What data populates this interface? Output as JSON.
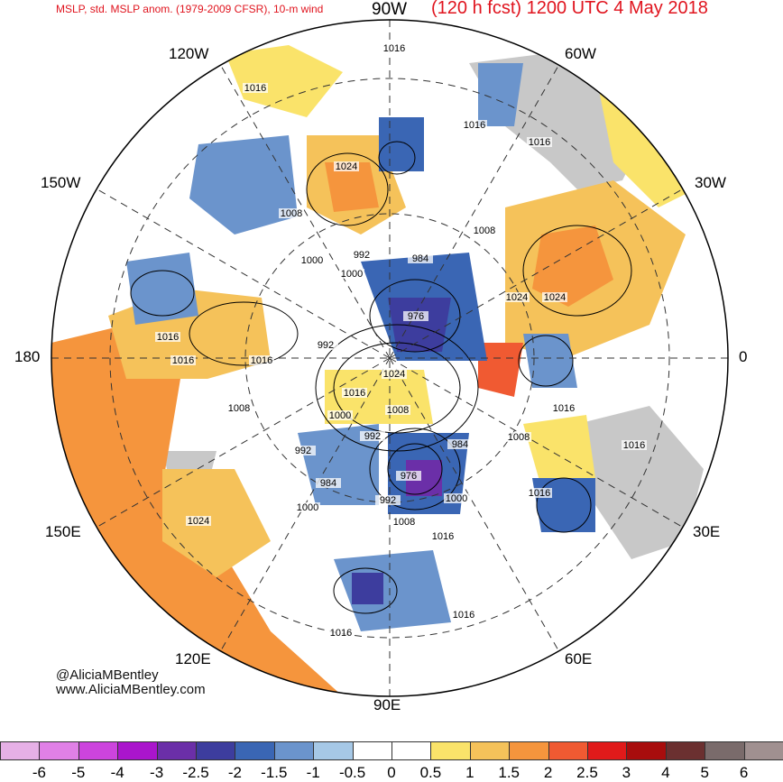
{
  "header": {
    "left_title": "MSLP, std. MSLP anom. (1979-2009 CFSR), 10-m wind",
    "right_title": "(120 h fcst) 1200 UTC 4 May 2018"
  },
  "longitude_labels": {
    "top": "90W",
    "top_left": "120W",
    "top_right": "60W",
    "left_upper": "150W",
    "right_upper": "30W",
    "left": "180",
    "right": "0",
    "left_lower": "150E",
    "right_lower": "30E",
    "bottom_left": "120E",
    "bottom_right": "60E",
    "bottom": "90E"
  },
  "isobar_labels": [
    "1016",
    "1016",
    "1016",
    "1024",
    "1008",
    "1016",
    "1008",
    "1000",
    "1000",
    "992",
    "984",
    "976",
    "1024",
    "1016",
    "1024",
    "1016",
    "992",
    "1016",
    "1016",
    "1024",
    "1008",
    "1000",
    "1008",
    "992",
    "992",
    "984",
    "1016",
    "1008",
    "976",
    "984",
    "1000",
    "992",
    "1016",
    "1000",
    "1008",
    "1016",
    "1016",
    "1024",
    "1016",
    "1016"
  ],
  "credit": {
    "handle": "@AliciaMBentley",
    "site": "www.AliciaMBentley.com"
  },
  "colorbar": {
    "ticks": [
      "-6",
      "-5",
      "-4",
      "-3",
      "-2.5",
      "-2",
      "-1.5",
      "-1",
      "-0.5",
      "0",
      "0.5",
      "1",
      "1.5",
      "2",
      "2.5",
      "3",
      "4",
      "5",
      "6"
    ],
    "colors": [
      "#e6b0e6",
      "#e080e6",
      "#cc44dd",
      "#aa15cc",
      "#6b2fa8",
      "#3d3d9e",
      "#3a66b4",
      "#6b94cc",
      "#a6c8e6",
      "#ffffff",
      "#ffffff",
      "#fae36a",
      "#f5c25a",
      "#f5953d",
      "#f05a32",
      "#e01a1a",
      "#a80d0d",
      "#6b3030",
      "#7a6b6b",
      "#a09090"
    ]
  }
}
